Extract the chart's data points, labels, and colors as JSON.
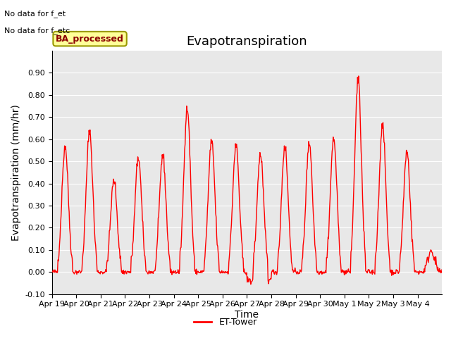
{
  "title": "Evapotranspiration",
  "xlabel": "Time",
  "ylabel": "Evapotranspiration (mm/hr)",
  "ylim": [
    -0.1,
    1.0
  ],
  "yticks": [
    -0.1,
    0.0,
    0.1,
    0.2,
    0.3,
    0.4,
    0.5,
    0.6,
    0.7,
    0.8,
    0.9
  ],
  "background_color": "#e8e8e8",
  "figure_bg": "#ffffff",
  "line_color": "#ff0000",
  "line_width": 1.0,
  "annotation_line1": "No data for f_et",
  "annotation_line2": "No data for f_etc",
  "legend_label": "ET-Tower",
  "legend_box_color": "#ffff99",
  "legend_box_edge": "#999900",
  "ba_processed_label": "BA_processed",
  "xtick_labels": [
    "Apr 19",
    "Apr 20",
    "Apr 21",
    "Apr 22",
    "Apr 23",
    "Apr 24",
    "Apr 25",
    "Apr 26",
    "Apr 27",
    "Apr 28",
    "Apr 29",
    "Apr 30",
    "May 1",
    "May 2",
    "May 3",
    "May 4"
  ],
  "title_fontsize": 13,
  "axis_fontsize": 10,
  "tick_fontsize": 8,
  "daily_peaks": [
    0.57,
    0.64,
    0.42,
    0.52,
    0.53,
    0.75,
    0.6,
    0.58,
    0.54,
    0.57,
    0.59,
    0.61,
    0.88,
    0.67,
    0.55,
    0.1
  ],
  "days": 16
}
